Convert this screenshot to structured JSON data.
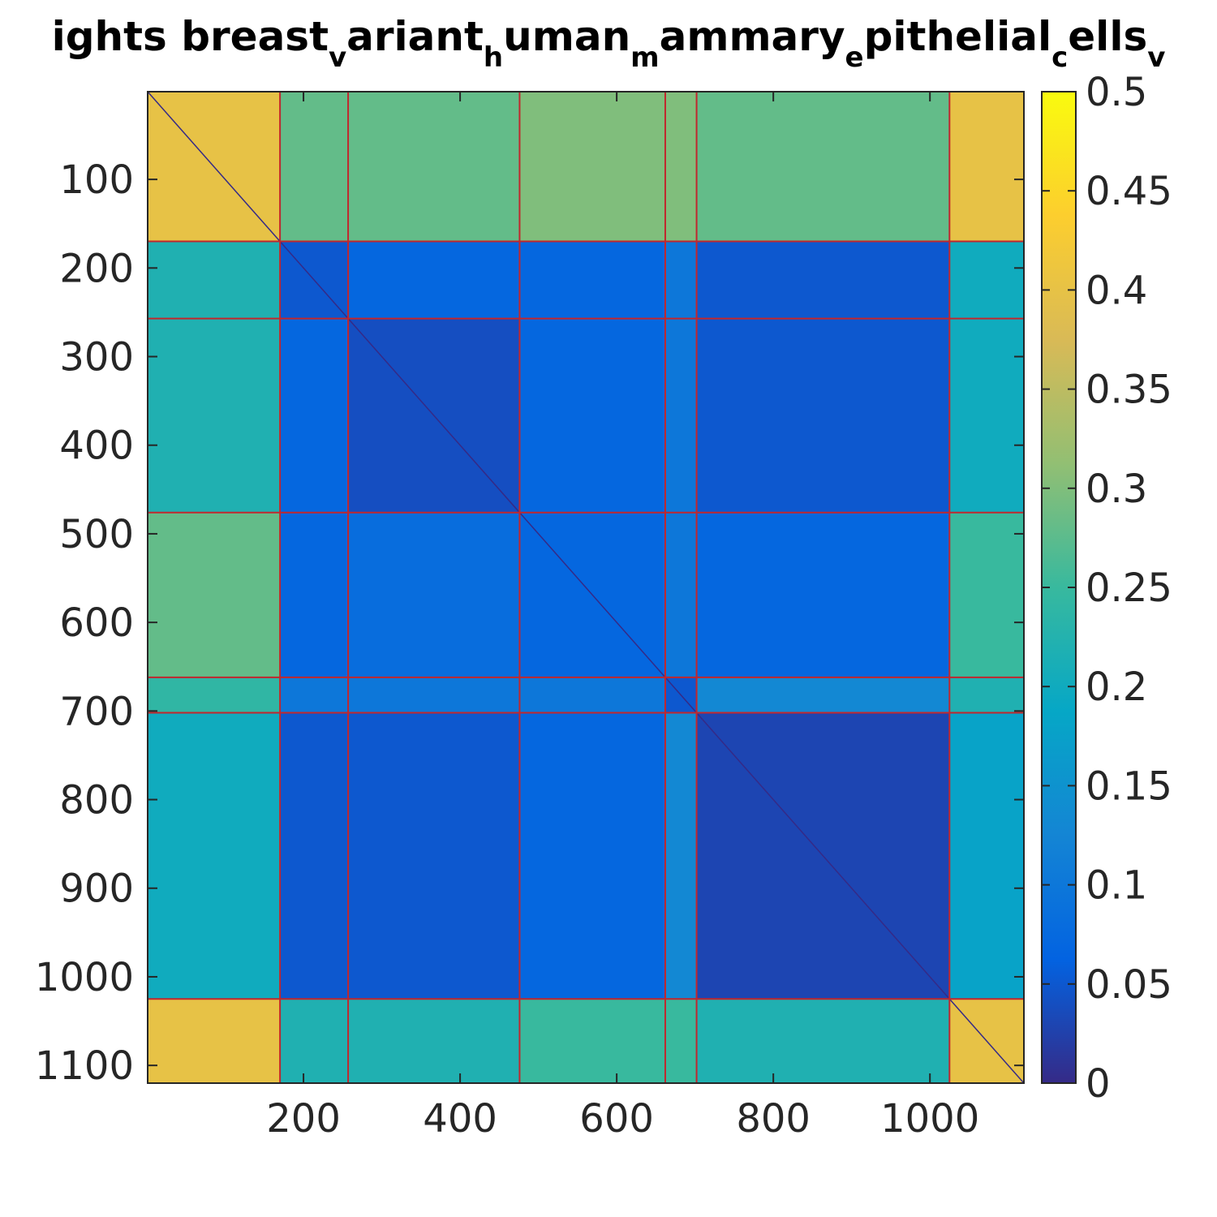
{
  "chart_data": {
    "type": "heatmap",
    "title": {
      "segments": [
        {
          "text": "ights breast",
          "sub": false
        },
        {
          "text": "v",
          "sub": true
        },
        {
          "text": "ariant",
          "sub": false
        },
        {
          "text": "h",
          "sub": true
        },
        {
          "text": "uman",
          "sub": false
        },
        {
          "text": "m",
          "sub": true
        },
        {
          "text": "ammary",
          "sub": false
        },
        {
          "text": "e",
          "sub": true
        },
        {
          "text": "pithelial",
          "sub": false
        },
        {
          "text": "c",
          "sub": true
        },
        {
          "text": "ells",
          "sub": false
        },
        {
          "text": "v",
          "sub": true
        }
      ]
    },
    "xlim": [
      1,
      1120
    ],
    "ylim": [
      1,
      1120
    ],
    "y_reversed": true,
    "x_ticks": [
      200,
      400,
      600,
      800,
      1000
    ],
    "x_tick_labels": [
      "200",
      "400",
      "600",
      "800",
      "1000"
    ],
    "y_ticks": [
      100,
      200,
      300,
      400,
      500,
      600,
      700,
      800,
      900,
      1000,
      1100
    ],
    "y_tick_labels": [
      "100",
      "200",
      "300",
      "400",
      "500",
      "600",
      "700",
      "800",
      "900",
      "1000",
      "1100"
    ],
    "colorbar": {
      "range": [
        0,
        0.5
      ],
      "ticks": [
        0,
        0.05,
        0.1,
        0.15,
        0.2,
        0.25,
        0.3,
        0.35,
        0.4,
        0.45,
        0.5
      ],
      "tick_labels": [
        "0",
        "0.05",
        "0.1",
        "0.15",
        "0.2",
        "0.25",
        "0.3",
        "0.35",
        "0.4",
        "0.45",
        "0.5"
      ],
      "colormap": "parula",
      "colormap_stops": [
        "#352a87",
        "#0363e1",
        "#1485d4",
        "#06a7c6",
        "#38b99e",
        "#92bf73",
        "#d9ba56",
        "#fcce2e",
        "#f9fb0e"
      ]
    },
    "cluster_boundaries": [
      170,
      257,
      476,
      662,
      702,
      1025
    ],
    "block_values": [
      [
        0.4,
        0.28,
        0.28,
        0.3,
        0.3,
        0.28,
        0.4
      ],
      [
        0.22,
        0.05,
        0.07,
        0.07,
        0.1,
        0.05,
        0.2
      ],
      [
        0.22,
        0.07,
        0.04,
        0.07,
        0.1,
        0.05,
        0.2
      ],
      [
        0.28,
        0.07,
        0.08,
        0.07,
        0.1,
        0.07,
        0.25
      ],
      [
        0.24,
        0.1,
        0.1,
        0.1,
        0.05,
        0.13,
        0.22
      ],
      [
        0.2,
        0.05,
        0.05,
        0.07,
        0.13,
        0.03,
        0.18
      ],
      [
        0.4,
        0.22,
        0.22,
        0.25,
        0.25,
        0.22,
        0.4
      ]
    ],
    "diagonal_value": 0,
    "boundary_line_color": "#c1272d",
    "grid": false
  }
}
